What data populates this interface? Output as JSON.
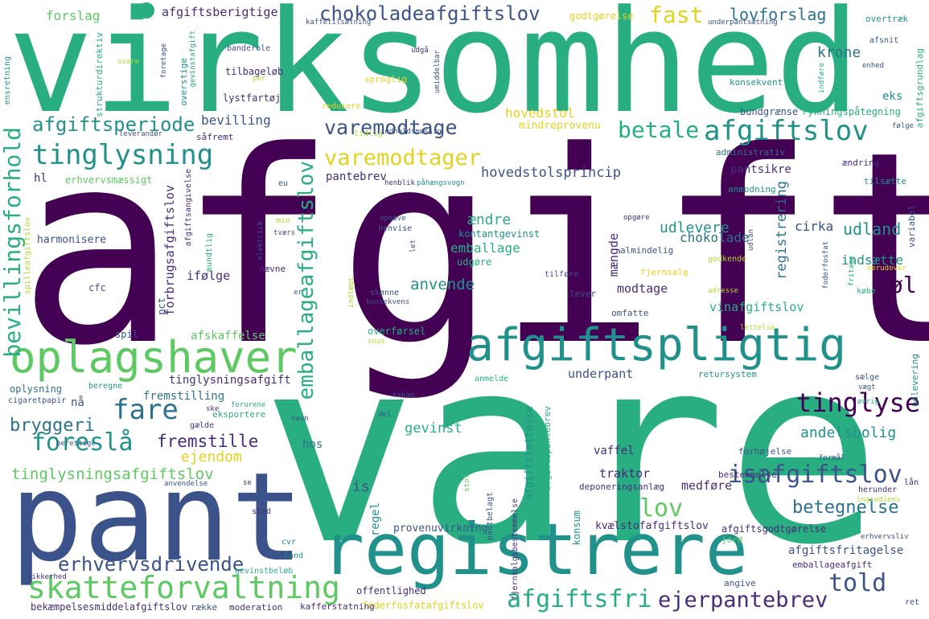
{
  "palette": [
    "#440154",
    "#472d7b",
    "#3b528b",
    "#2c728e",
    "#21918c",
    "#28ae80",
    "#5ec962",
    "#addc30",
    "#e3d320",
    "#3e4989"
  ],
  "words": {
    "virksomhed": "virksomhed",
    "afgift": "afgift",
    "vare": "vare",
    "pant": "pant",
    "registrere": "registrere",
    "afgiftspligtig": "afgiftspligtig",
    "oplagshaver": "oplagshaver",
    "skatteforvaltning": "skatteforvaltning",
    "chokoladeafgiftslov": "chokoladeafgiftslov",
    "afgiftslov": "afgiftslov",
    "varemodtage": "varemodtage",
    "varemodtager": "varemodtager",
    "tinglysning": "tinglysning",
    "afgiftsperiode": "afgiftsperiode",
    "betale": "betale",
    "fast": "fast",
    "lovforslag": "lovforslag",
    "krone": "krone",
    "tinglyse": "tinglyse",
    "isafgiftslov": "isafgiftslov",
    "told": "told",
    "afgiftsfri": "afgiftsfri",
    "ejerpantebrev": "ejerpantebrev",
    "bevillingsforhold": "bevillingsforhold",
    "emballageafgiftslov": "emballageafgiftslov",
    "fare": "fare",
    "foreslå": "foreslå",
    "bryggeri": "bryggeri",
    "fremstille": "fremstille",
    "ejendom": "ejendom",
    "lov": "lov",
    "betegnelse": "betegnelse",
    "erhvervsdrivende": "erhvervsdrivende",
    "tinglysningsafgiftslov": "tinglysningsafgiftslov",
    "forslag": "forslag",
    "afgiftsberigtige": "afgiftsberigtige",
    "godtgørelse": "godtgørelse",
    "overtræk": "overtræk",
    "bevilling": "bevilling",
    "hovedstol": "hovedstol",
    "mindreprovenu": "mindreprovenu",
    "pantebrev": "pantebrev",
    "hovedstolsprincip": "hovedstolsprincip",
    "pantsikre": "pantsikre",
    "udland": "udland",
    "udlevere": "udlevere",
    "chokolade": "chokolade",
    "cirka": "cirka",
    "indsætte": "indsætte",
    "øl": "øl",
    "emballage": "emballage",
    "anvende": "anvende",
    "mængde": "mængde",
    "registrering": "registrering",
    "modtage": "modtage",
    "vinafgiftslov": "vinafgiftslov",
    "ændre": "ændre",
    "andelsbolig": "andelsbolig",
    "gevinst": "gevinst",
    "is": "is",
    "underpant": "underpant",
    "traktor": "traktor",
    "medføre": "medføre",
    "vaffel": "vaffel",
    "hl": "hl",
    "harmonisere": "harmonisere",
    "ifølge": "ifølge",
    "forbrugsafgiftslov": "forbrugsafgiftslov",
    "afskaffelse": "afskaffelse",
    "tinglysningsafgift": "tinglysningsafgift",
    "fremstilling": "fremstilling",
    "hos": "hos",
    "nå": "nå",
    "spil": "spil",
    "cfc": "cfc",
    "pct": "pct",
    "eks": "eks",
    "bundgrænse": "bundgrænse",
    "rykningspåtegning": "rykningspåtegning",
    "administrativ": "administrativ",
    "konsekvent": "konsekvent",
    "lystfartøj": "lystfartøj",
    "tilbageløb": "tilbageløb",
    "afgiftsfritagelse": "afgiftsfritagelse",
    "regel": "regel",
    "provenuvirkning": "provenuvirkning",
    "kvælstofafgiftslov": "kvælstofafgiftslov",
    "afgiftsgodtgørelse": "afgiftsgodtgørelse",
    "emballageafgift": "emballageafgift",
    "offentlighed": "offentlighed",
    "foderfosfatafgiftslov": "foderfosfatafgiftslov",
    "bekæmpelsesmiddelafgiftslov": "bekæmpelsesmiddelafgiftslov",
    "moderation": "moderation",
    "bestemmelse": "bestemmelse",
    "deponeringsanlæg": "deponeringsanlæg",
    "afgiftslettelse": "afgiftslettelse",
    "afgiftspantebrev": "afgiftspantebrev",
    "konsum": "konsum",
    "overførsel": "overførsel",
    "fjernsalg": "fjernsalg",
    "returystem": "retursystem",
    "forhøjelse": "forhøjelse",
    "omfatte": "omfatte",
    "lever": "lever",
    "udlevering": "udlevering",
    "variabel": "variabel",
    "anmodning": "anmodning",
    "tilsætte": "tilsætte",
    "ændring": "ændring",
    "kontantgevinst": "kontantgevinst",
    "almindelig": "almindelig",
    "udgøre": "udgøre",
    "nævne": "nævne",
    "erhvervsmæssigt": "erhvervsmæssigt",
    "sproglig": "sproglig",
    "reducere": "reducere",
    "afgiftsgrundlag": "afgiftsgrundlag",
    "bevillingsforhold2": "spilleafgiftslov",
    "enhed": "enhed",
    "oplysning": "oplysning",
    "cigaretpapir": "cigaretpapir",
    "beregne": "beregne",
    "eksportere": "eksportere",
    "gælde": "gælde",
    "land": "land",
    "cvr": "cvr",
    "sted": "sted",
    "gevinstbeløb": "gevinstbeløb",
    "sikkerhed": "sikkerhed",
    "række": "række",
    "angive": "angive",
    "jord": "jord",
    "pantbelagt": "pantbelagt",
    "fjernsalgsbestemmelse": "fjernsalgsbestemmelse",
    "anmelde": "anmelde",
    "sælge": "sælge",
    "købe": "købe",
    "godkende": "godkende",
    "opgøre": "opgøre",
    "ophæve": "ophæve",
    "henvise": "henvise",
    "udlån": "udlån",
    "lån": "lån",
    "herunder": "herunder",
    "ingrediens": "ingrediens",
    "formål": "formål",
    "erhvervsliv": "erhvervsliv",
    "ret": "ret",
    "kafferstatning": "kafferstatning",
    "underpantsætning": "underpantsætning",
    "kaffetilsætning": "kaffetilsætning",
    "udgå": "udgå",
    "afsnit": "afsnit",
    "indføre": "indføre",
    "følge": "følge",
    "ensretning": "ensretning",
    "strukturdirektiv": "strukturdirektiv",
    "banderole": "banderole",
    "svare": "svare",
    "foretage": "foretage",
    "overstige": "overstige",
    "gevinstafgift": "gevinstafgift",
    "leverandør": "leverandør",
    "såfremt": "såfremt",
    "tidlig": "tidlig",
    "indholdsmæssig": "indholdsmæssig",
    "henblik": "henblik",
    "påhængsvogn": "påhængsvogn",
    "eu": "eu",
    "mio": "mio",
    "tværs": "tværs",
    "elektrisk": "elektrisk",
    "mundtlig": "mundtlig",
    "afgiftsangivelse": "afgiftsangivelse",
    "let": "let",
    "tilføre": "tilføre",
    "skønne": "skønne",
    "konsekvens": "konsekvens",
    "indtægt": "indtægt",
    "snus": "snus",
    "kakao": "kakao",
    "forurene": "forurene",
    "ske": "ske",
    "navn": "navn",
    "del": "del",
    "øvrig": "øvrig",
    "vægt": "vægt",
    "lettelse": "lettelse",
    "adresse": "adresse",
    "foderfosfat": "foderfosfat",
    "fritage": "fritage",
    "derudover": "derudover",
    "anvendelse": "anvendelse",
    "berettige": "berettige",
    "stof": "stof",
    "er": "er",
    "per": "per",
    "umiddelbar": "umiddelbar",
    "se": "se"
  }
}
